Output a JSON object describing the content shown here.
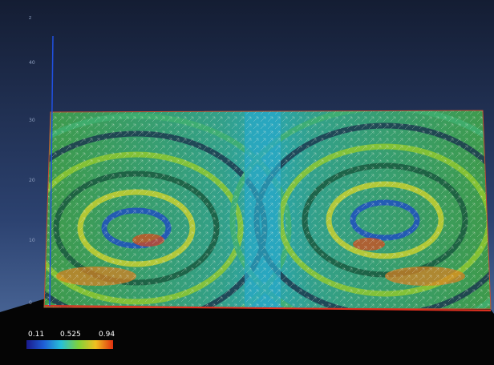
{
  "axis": {
    "label": "z",
    "ticks": [
      "40",
      "30",
      "20",
      "10",
      "0"
    ]
  },
  "colorbar": {
    "labels": [
      "0.11",
      "0.525",
      "0.94"
    ]
  }
}
